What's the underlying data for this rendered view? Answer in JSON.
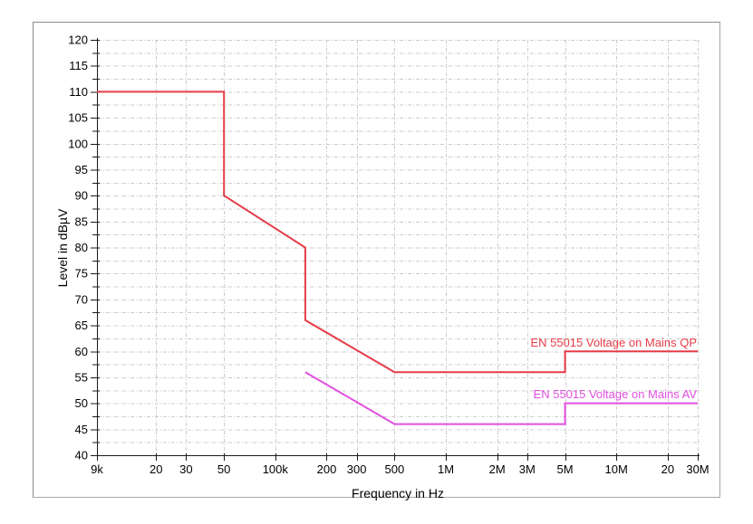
{
  "chart_data": {
    "type": "line",
    "title": "",
    "xlabel": "Frequency in Hz",
    "ylabel": "Level in dBµV",
    "x_scale": "log",
    "xlim_hz": [
      9000,
      30000000
    ],
    "ylim": [
      40,
      120
    ],
    "y_tick_major_step": 5,
    "y_tick_minor_step": 2.5,
    "grid": "dashed",
    "x_ticks": [
      {
        "hz": 9000,
        "label": "9k"
      },
      {
        "hz": 20000,
        "label": "20"
      },
      {
        "hz": 30000,
        "label": "30"
      },
      {
        "hz": 50000,
        "label": "50"
      },
      {
        "hz": 100000,
        "label": "100k"
      },
      {
        "hz": 200000,
        "label": "200"
      },
      {
        "hz": 300000,
        "label": "300"
      },
      {
        "hz": 500000,
        "label": "500"
      },
      {
        "hz": 1000000,
        "label": "1M"
      },
      {
        "hz": 2000000,
        "label": "2M"
      },
      {
        "hz": 3000000,
        "label": "3M"
      },
      {
        "hz": 5000000,
        "label": "5M"
      },
      {
        "hz": 10000000,
        "label": "10M"
      },
      {
        "hz": 20000000,
        "label": "20"
      },
      {
        "hz": 30000000,
        "label": "30M"
      }
    ],
    "series": [
      {
        "name": "EN 55015 Voltage on Mains QP",
        "color": "#e63c48",
        "points_hz_db": [
          [
            9000,
            110
          ],
          [
            50000,
            110
          ],
          [
            50000,
            90
          ],
          [
            150000,
            80
          ],
          [
            150000,
            66
          ],
          [
            500000,
            56
          ],
          [
            5000000,
            56
          ],
          [
            5000000,
            60
          ],
          [
            30000000,
            60
          ]
        ]
      },
      {
        "name": "EN 55015 Voltage on Mains AV",
        "color": "#e04fe0",
        "points_hz_db": [
          [
            150000,
            56
          ],
          [
            500000,
            46
          ],
          [
            5000000,
            46
          ],
          [
            5000000,
            50
          ],
          [
            30000000,
            50
          ]
        ]
      }
    ],
    "colors": {
      "background": "#ffffff",
      "panel_border": "#a8a8a8",
      "grid": "#cbcbcb",
      "axis": "#1a1a1a",
      "tick_text": "#000000"
    }
  }
}
